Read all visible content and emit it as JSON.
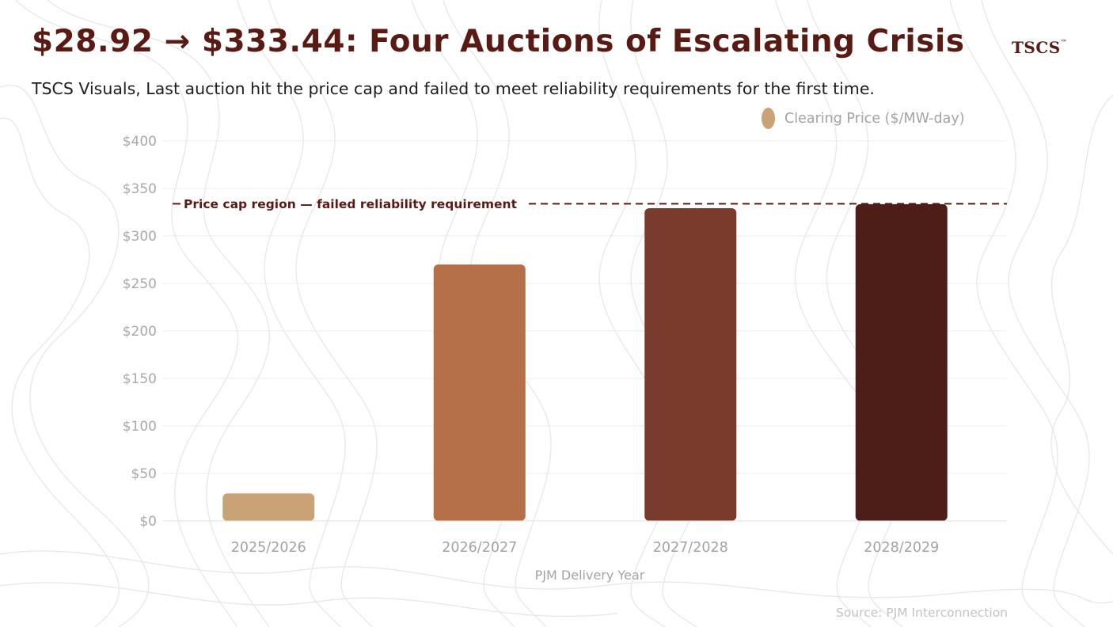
{
  "header": {
    "title": "$28.92 → $333.44: Four Auctions of Escalating Crisis",
    "brand": "TSCS",
    "brand_mark": "™",
    "subtitle": "TSCS Visuals, Last auction hit the price cap and failed to meet reliability requirements for the first time."
  },
  "legend": {
    "label": "Clearing Price ($/MW-day)",
    "color": "#c9a275"
  },
  "chart_data": {
    "type": "bar",
    "categories": [
      "2025/2026",
      "2026/2027",
      "2027/2028",
      "2028/2029"
    ],
    "series": [
      {
        "name": "Clearing Price ($/MW-day)",
        "values": [
          28.92,
          269.92,
          329.17,
          333.44
        ],
        "colors": [
          "#c9a275",
          "#b5704a",
          "#7a3b2c",
          "#4d1e18"
        ]
      }
    ],
    "title": "$28.92 → $333.44: Four Auctions of Escalating Crisis",
    "xlabel": "PJM Delivery Year",
    "ylabel": "",
    "ylim": [
      0,
      400
    ],
    "yticks": [
      0,
      50,
      100,
      150,
      200,
      250,
      300,
      350,
      400
    ],
    "ytick_labels": [
      "$0",
      "$50",
      "$100",
      "$150",
      "$200",
      "$250",
      "$300",
      "$350",
      "$400"
    ],
    "grid": true,
    "reference_line": {
      "value": 333.44,
      "label": "Price cap region — failed reliability requirement",
      "color": "#5a1a14"
    },
    "legend_position": "top-right"
  },
  "footer": {
    "source": "Source: PJM Interconnection"
  }
}
